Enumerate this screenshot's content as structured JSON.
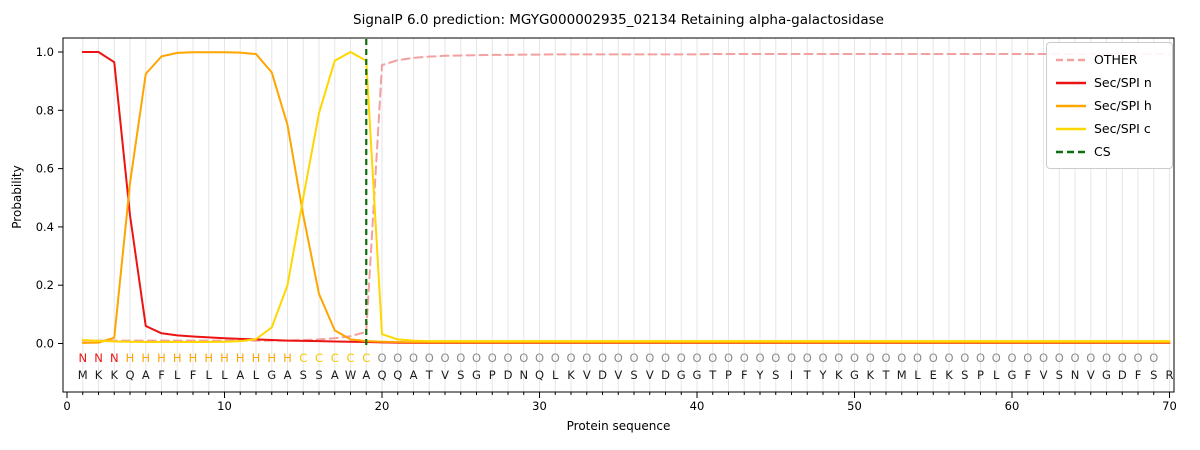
{
  "chart_data": {
    "type": "line",
    "title": "SignalP 6.0 prediction: MGYG000002935_02134 Retaining alpha-galactosidase",
    "xlabel": "Protein sequence",
    "ylabel": "Probability",
    "xticks": [
      0,
      10,
      20,
      30,
      40,
      50,
      60,
      70
    ],
    "yticks": [
      "0.0",
      "0.2",
      "0.4",
      "0.6",
      "0.8",
      "1.0"
    ],
    "xlim": [
      -0.3,
      70.3
    ],
    "ylim": [
      -0.17,
      1.05
    ],
    "grid": "vertical-per-residue",
    "legend_position": "upper-right",
    "series": [
      {
        "name": "OTHER",
        "color": "#f2a0a0",
        "dashed": true,
        "values": [
          0.01,
          0.01,
          0.01,
          0.01,
          0.01,
          0.01,
          0.01,
          0.01,
          0.01,
          0.01,
          0.01,
          0.01,
          0.01,
          0.01,
          0.012,
          0.014,
          0.018,
          0.025,
          0.04,
          0.955,
          0.972,
          0.98,
          0.984,
          0.987,
          0.988,
          0.989,
          0.99,
          0.99,
          0.991,
          0.991,
          0.992,
          0.992,
          0.992,
          0.992,
          0.992,
          0.992,
          0.992,
          0.992,
          0.992,
          0.992,
          0.993,
          0.993,
          0.993,
          0.993,
          0.993,
          0.993,
          0.993,
          0.993,
          0.993,
          0.993,
          0.993,
          0.993,
          0.993,
          0.993,
          0.993,
          0.993,
          0.993,
          0.993,
          0.993,
          0.993,
          0.993,
          0.993,
          0.993,
          0.993,
          0.993,
          0.993,
          0.993,
          0.993,
          0.993,
          0.993
        ]
      },
      {
        "name": "Sec/SPI n",
        "color": "#ec1313",
        "dashed": false,
        "values": [
          1.0,
          1.0,
          0.965,
          0.44,
          0.06,
          0.035,
          0.028,
          0.024,
          0.021,
          0.018,
          0.016,
          0.014,
          0.012,
          0.01,
          0.009,
          0.008,
          0.007,
          0.006,
          0.005,
          0.004,
          0.003,
          0.002,
          0.002,
          0.002,
          0.002,
          0.002,
          0.002,
          0.002,
          0.002,
          0.002,
          0.002,
          0.002,
          0.002,
          0.002,
          0.002,
          0.002,
          0.002,
          0.002,
          0.002,
          0.002,
          0.002,
          0.002,
          0.002,
          0.002,
          0.002,
          0.002,
          0.002,
          0.002,
          0.002,
          0.002,
          0.002,
          0.002,
          0.002,
          0.002,
          0.002,
          0.002,
          0.002,
          0.002,
          0.002,
          0.002,
          0.002,
          0.002,
          0.002,
          0.002,
          0.002,
          0.002,
          0.002,
          0.002,
          0.002,
          0.002
        ]
      },
      {
        "name": "Sec/SPI h",
        "color": "#ffa500",
        "dashed": false,
        "values": [
          0.002,
          0.003,
          0.02,
          0.55,
          0.925,
          0.985,
          0.997,
          0.999,
          0.999,
          0.999,
          0.998,
          0.993,
          0.93,
          0.75,
          0.44,
          0.17,
          0.045,
          0.014,
          0.008,
          0.006,
          0.005,
          0.004,
          0.004,
          0.004,
          0.004,
          0.004,
          0.004,
          0.004,
          0.004,
          0.004,
          0.004,
          0.004,
          0.004,
          0.004,
          0.004,
          0.004,
          0.004,
          0.004,
          0.004,
          0.004,
          0.004,
          0.004,
          0.004,
          0.004,
          0.004,
          0.004,
          0.004,
          0.004,
          0.004,
          0.004,
          0.004,
          0.004,
          0.004,
          0.004,
          0.004,
          0.004,
          0.004,
          0.004,
          0.004,
          0.004,
          0.004,
          0.004,
          0.004,
          0.004,
          0.004,
          0.004,
          0.004,
          0.004,
          0.004,
          0.004
        ]
      },
      {
        "name": "Sec/SPI c",
        "color": "#ffd700",
        "dashed": false,
        "values": [
          0.012,
          0.009,
          0.007,
          0.006,
          0.005,
          0.005,
          0.005,
          0.005,
          0.005,
          0.006,
          0.008,
          0.015,
          0.055,
          0.2,
          0.5,
          0.79,
          0.97,
          1.0,
          0.97,
          0.032,
          0.014,
          0.01,
          0.008,
          0.008,
          0.008,
          0.008,
          0.008,
          0.008,
          0.008,
          0.008,
          0.008,
          0.008,
          0.008,
          0.008,
          0.008,
          0.008,
          0.008,
          0.008,
          0.008,
          0.008,
          0.008,
          0.008,
          0.008,
          0.008,
          0.008,
          0.008,
          0.008,
          0.008,
          0.008,
          0.008,
          0.008,
          0.008,
          0.008,
          0.008,
          0.008,
          0.008,
          0.008,
          0.008,
          0.008,
          0.008,
          0.008,
          0.008,
          0.008,
          0.008,
          0.008,
          0.008,
          0.008,
          0.008,
          0.008,
          0.008
        ]
      }
    ],
    "cs_marker": {
      "label": "CS",
      "position": 19,
      "color": "#0e6e0e",
      "dashed": true
    },
    "sequence": {
      "residues": "MKKQAFLFLLALGASSAWAQQATVSGPDNQLKVDVSVDGGTPFYSITYKGKTMLEKSPLGFVSNVGDFSR",
      "region_labels": "NNNHHHHHHHHHHHCCCCCOOOOOOOOOOOOOOOOOOOOOOOOOOOOOOOOOOOOOOOOOOOOOOOOOO",
      "region_colors": {
        "N": "#ec1313",
        "H": "#ffa500",
        "C": "#f2ca00",
        "O": "#8c8c8c"
      },
      "residue_color": "#1a1a1a"
    },
    "legend_items": [
      {
        "label": "OTHER",
        "color": "#f2a0a0",
        "dashed": true
      },
      {
        "label": "Sec/SPI n",
        "color": "#ec1313",
        "dashed": false
      },
      {
        "label": "Sec/SPI h",
        "color": "#ffa500",
        "dashed": false
      },
      {
        "label": "Sec/SPI c",
        "color": "#ffd700",
        "dashed": false
      },
      {
        "label": "CS",
        "color": "#0e6e0e",
        "dashed": true
      }
    ],
    "colors": {
      "axis": "#000000",
      "grid": "#e6e6e6",
      "tick_label": "#000000"
    }
  }
}
